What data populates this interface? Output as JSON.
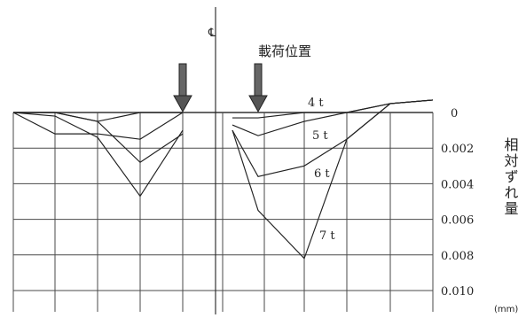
{
  "chart_data": {
    "type": "line",
    "title": "載荷位置",
    "ylabel": "相対ずれ量",
    "yunit": "(mm)",
    "centerline_label": "℄",
    "ylim": [
      0,
      0.01
    ],
    "yticks": [
      "0",
      "0.002",
      "0.004",
      "0.006",
      "0.008",
      "0.010"
    ],
    "ytick_values": [
      0,
      0.002,
      0.004,
      0.006,
      0.008,
      0.01
    ],
    "grid": true,
    "x": [
      0,
      1,
      2,
      3,
      4,
      4.5,
      5,
      5.5,
      6,
      7,
      8,
      9,
      10
    ],
    "load_positions": [
      4,
      6
    ],
    "series": [
      {
        "name": "4 t",
        "values": [
          0,
          0,
          0.0005,
          0,
          0,
          null,
          null,
          0.0003,
          0.0003,
          0,
          0,
          -0.0005,
          -0.0007
        ]
      },
      {
        "name": "5 t",
        "values": [
          0,
          0.0012,
          0.0012,
          0.0015,
          0,
          null,
          null,
          0.0007,
          0.0013,
          0.0005,
          0,
          -0.0005,
          -0.0007
        ]
      },
      {
        "name": "6 t",
        "values": [
          0,
          0,
          0.0005,
          0.0028,
          0.0012,
          null,
          null,
          0.001,
          0.0036,
          0.003,
          0.0015,
          -0.0005,
          -0.0007
        ]
      },
      {
        "name": "7 t",
        "values": [
          0,
          0.0002,
          0.0014,
          0.0047,
          0.001,
          null,
          null,
          0.001,
          0.0055,
          0.0082,
          0.0015,
          -0.0005,
          -0.0007
        ]
      }
    ]
  }
}
